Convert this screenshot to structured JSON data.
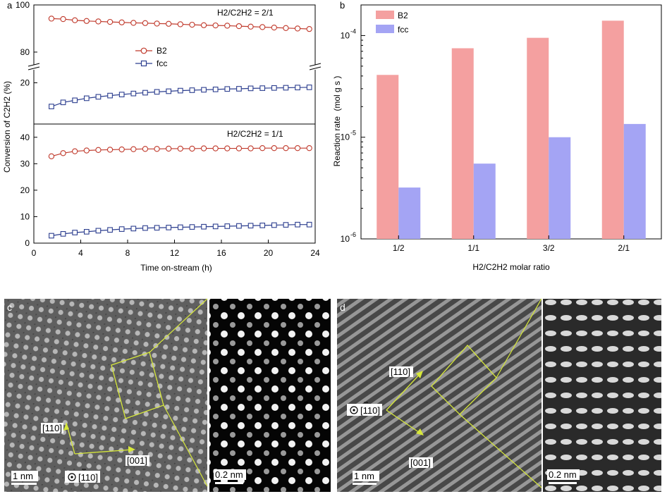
{
  "panel_labels": {
    "a": "a",
    "b": "b",
    "c": "c",
    "d": "d"
  },
  "chart_data": [
    {
      "type": "line",
      "panel": "a-top",
      "annotation": "H2/C2H2 = 2/1",
      "ylabel": "Conversion of C2H2 (%)",
      "xlabel": "Time on-stream (h)",
      "xlim": [
        0,
        24
      ],
      "xticks": [
        "0",
        "4",
        "8",
        "12",
        "16",
        "20",
        "24"
      ],
      "ylim_upper": [
        74,
        100
      ],
      "ylim_lower": [
        0,
        27
      ],
      "yticks_upper": [
        "80",
        "100"
      ],
      "yticks_lower": [
        "20"
      ],
      "legend_position": "center-left",
      "colors": {
        "B2": "#c0392b",
        "fcc": "#2c3e8f"
      },
      "series": [
        {
          "name": "B2",
          "x": [
            1.5,
            2.5,
            3.5,
            4.5,
            5.5,
            6.5,
            7.5,
            8.5,
            9.5,
            10.5,
            11.5,
            12.5,
            13.5,
            14.5,
            15.5,
            16.5,
            17.5,
            18.5,
            19.5,
            20.5,
            21.5,
            22.5,
            23.5
          ],
          "y": [
            94.2,
            94.0,
            93.5,
            93.2,
            93.0,
            92.8,
            92.6,
            92.4,
            92.3,
            92.1,
            92.0,
            91.8,
            91.6,
            91.4,
            91.3,
            91.2,
            91.0,
            90.8,
            90.6,
            90.4,
            90.2,
            90.0,
            89.8
          ]
        },
        {
          "name": "fcc",
          "x": [
            1.5,
            2.5,
            3.5,
            4.5,
            5.5,
            6.5,
            7.5,
            8.5,
            9.5,
            10.5,
            11.5,
            12.5,
            13.5,
            14.5,
            15.5,
            16.5,
            17.5,
            18.5,
            19.5,
            20.5,
            21.5,
            22.5,
            23.5
          ],
          "y": [
            8.5,
            10.5,
            11.5,
            12.5,
            13.2,
            13.8,
            14.3,
            14.8,
            15.2,
            15.6,
            15.9,
            16.2,
            16.4,
            16.6,
            16.8,
            17.0,
            17.1,
            17.3,
            17.4,
            17.5,
            17.6,
            17.7,
            17.8
          ]
        }
      ]
    },
    {
      "type": "line",
      "panel": "a-bottom",
      "annotation": "H2/C2H2 = 1/1",
      "xlim": [
        0,
        24
      ],
      "ylim": [
        0,
        45
      ],
      "yticks": [
        "0",
        "10",
        "20",
        "30",
        "40"
      ],
      "series": [
        {
          "name": "B2",
          "x": [
            1.5,
            2.5,
            3.5,
            4.5,
            5.5,
            6.5,
            7.5,
            8.5,
            9.5,
            10.5,
            11.5,
            12.5,
            13.5,
            14.5,
            15.5,
            16.5,
            17.5,
            18.5,
            19.5,
            20.5,
            21.5,
            22.5,
            23.5
          ],
          "y": [
            32.8,
            34.0,
            34.7,
            35.0,
            35.2,
            35.3,
            35.4,
            35.5,
            35.6,
            35.6,
            35.7,
            35.7,
            35.7,
            35.8,
            35.8,
            35.8,
            35.8,
            35.8,
            35.9,
            35.9,
            35.9,
            35.9,
            35.9
          ]
        },
        {
          "name": "fcc",
          "x": [
            1.5,
            2.5,
            3.5,
            4.5,
            5.5,
            6.5,
            7.5,
            8.5,
            9.5,
            10.5,
            11.5,
            12.5,
            13.5,
            14.5,
            15.5,
            16.5,
            17.5,
            18.5,
            19.5,
            20.5,
            21.5,
            22.5,
            23.5
          ],
          "y": [
            2.8,
            3.5,
            4.0,
            4.3,
            4.7,
            5.0,
            5.3,
            5.5,
            5.7,
            5.8,
            5.9,
            6.0,
            6.1,
            6.2,
            6.3,
            6.4,
            6.5,
            6.6,
            6.7,
            6.8,
            6.9,
            7.0,
            7.0
          ]
        }
      ]
    },
    {
      "type": "bar",
      "panel": "b",
      "xlabel": "H2/C2H2 molar ratio",
      "ylabel": "Reaction rate",
      "ylabel_unit": "(mol  g   s )",
      "yscale": "log",
      "ylim": [
        1e-06,
        0.0002
      ],
      "yticks": [
        "10",
        "10",
        "10"
      ],
      "ytick_exponents": [
        "-6",
        "-5",
        "-4"
      ],
      "categories": [
        "1/2",
        "1/1",
        "3/2",
        "2/1"
      ],
      "legend_position": "top-left",
      "colors": {
        "B2": "#f4a0a0",
        "fcc": "#a4a4f4"
      },
      "series": [
        {
          "name": "B2",
          "values": [
            4.1e-05,
            7.5e-05,
            9.5e-05,
            0.00014
          ]
        },
        {
          "name": "fcc",
          "values": [
            3.2e-06,
            5.5e-06,
            1e-05,
            1.35e-05
          ]
        }
      ]
    }
  ],
  "tem": {
    "c": {
      "scale_left": "1 nm",
      "scale_right": "0.2 nm",
      "dir_a": "[110]",
      "dir_b": "[001]",
      "zone": "[110]"
    },
    "d": {
      "scale_left": "1 nm",
      "scale_right": "0.2 nm",
      "dir_a": "[110]",
      "dir_b": "[001]",
      "zone": "[110]"
    }
  }
}
